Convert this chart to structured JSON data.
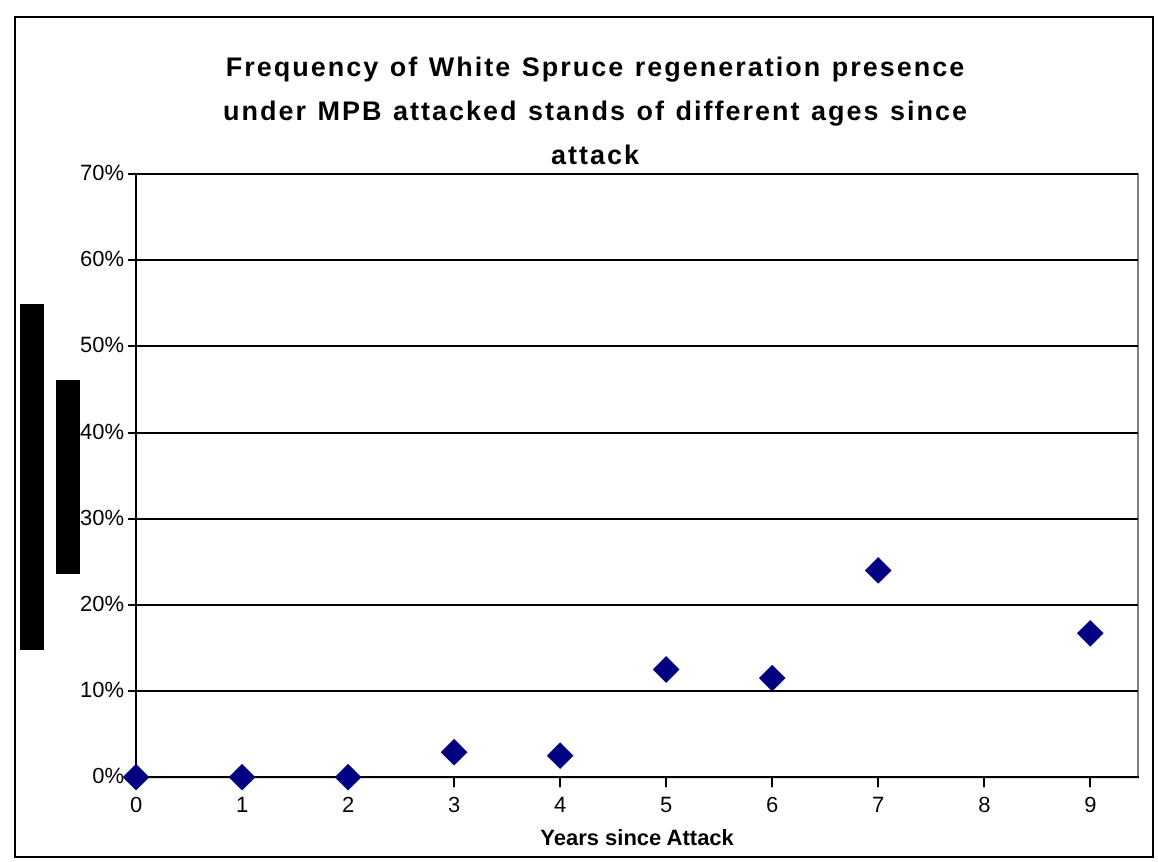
{
  "chart_data": {
    "type": "scatter",
    "title": "Frequency of White Spruce regeneration presence under MPB attacked stands of different ages since attack",
    "xlabel": "Years since Attack",
    "x": [
      0,
      1,
      2,
      3,
      4,
      5,
      6,
      7,
      9
    ],
    "series": [
      {
        "color": "#000080",
        "values": [
          0,
          0,
          0,
          2.9,
          2.5,
          12.5,
          11.5,
          24,
          16.7
        ]
      }
    ],
    "xlim": [
      0,
      9.45
    ],
    "xticks": [
      0,
      1,
      2,
      3,
      4,
      5,
      6,
      7,
      8,
      9
    ],
    "ylim": [
      0,
      70
    ],
    "yticks": [
      {
        "value": 0,
        "label": "0%"
      },
      {
        "value": 10,
        "label": "10%"
      },
      {
        "value": 20,
        "label": "20%"
      },
      {
        "value": 30,
        "label": "30%"
      },
      {
        "value": 40,
        "label": "40%"
      },
      {
        "value": 50,
        "label": "50%"
      },
      {
        "value": 60,
        "label": "60%"
      },
      {
        "value": 70,
        "label": "70%"
      }
    ],
    "grid": "y",
    "legend": false,
    "marker": "diamond"
  }
}
